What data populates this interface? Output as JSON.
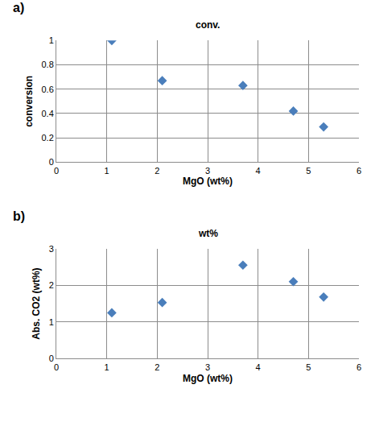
{
  "chart_data": [
    {
      "type": "scatter",
      "title": "conv.",
      "annotations": [
        "a)"
      ],
      "x_label": "MgO (wt%)",
      "y_label": "conversion",
      "x": [
        1.1,
        2.1,
        3.7,
        4.7,
        5.3
      ],
      "values": [
        1.0,
        0.67,
        0.63,
        0.42,
        0.29
      ],
      "color": "#4a7ebb",
      "marker": "diamond",
      "xlim": [
        0,
        6
      ],
      "xticks": [
        0,
        1,
        2,
        3,
        4,
        5,
        6
      ],
      "ylim": [
        0,
        1
      ],
      "yticks": [
        0,
        0.2,
        0.4,
        0.6,
        0.8,
        1
      ],
      "grid": true
    },
    {
      "type": "scatter",
      "title": "wt%",
      "annotations": [
        "b)"
      ],
      "x_label": "MgO (wt%)",
      "y_label": "Abs. CO2 (wt%)",
      "x": [
        1.1,
        2.1,
        3.7,
        4.7,
        5.3
      ],
      "values": [
        1.25,
        1.53,
        2.55,
        2.1,
        1.68
      ],
      "color": "#4a7ebb",
      "marker": "diamond",
      "xlim": [
        0,
        6
      ],
      "xticks": [
        0,
        1,
        2,
        3,
        4,
        5,
        6
      ],
      "ylim": [
        0,
        3
      ],
      "yticks": [
        0,
        1,
        2,
        3
      ],
      "grid": true
    }
  ]
}
